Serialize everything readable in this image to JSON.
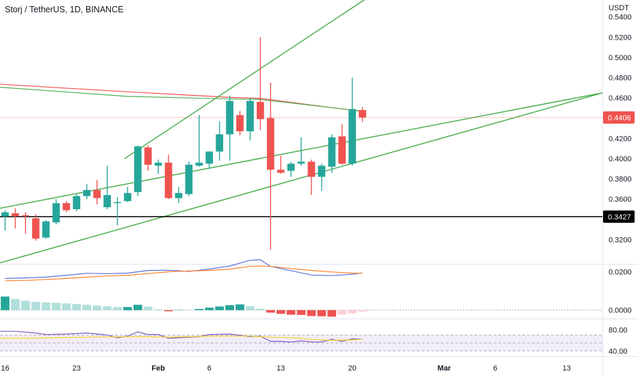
{
  "header": {
    "title": "Storj / TetherUS, 1D, BINANCE",
    "unit": "USDT"
  },
  "colors": {
    "up": "#26a69a",
    "down": "#ef5350",
    "trendline": "#4caf50",
    "ma_red": "#ef5350",
    "ma_green": "#4caf50",
    "support": "#000000",
    "macd": "#5b6fd6",
    "signal": "#ff7f2a",
    "rsi": "#7e57c2",
    "rsi_ma": "#f5d327",
    "hist_up_strong": "#26a69a",
    "hist_up_weak": "#b2dfdb",
    "hist_down_strong": "#ef5350",
    "hist_down_weak": "#ffcdd2"
  },
  "chart_data": [
    {
      "type": "candlestick",
      "title": "Storj / TetherUS, 1D, BINANCE",
      "ylabel": "USDT",
      "ylim": [
        0.296,
        0.5567
      ],
      "xlim": [
        15.5,
        74.5
      ],
      "x_is_day_index": "day 0 = Jan 1",
      "x_ticks": [
        {
          "x": 16,
          "label": "16"
        },
        {
          "x": 23,
          "label": "23"
        },
        {
          "x": 31,
          "label": "Feb"
        },
        {
          "x": 36,
          "label": "6"
        },
        {
          "x": 43,
          "label": "13"
        },
        {
          "x": 50,
          "label": "20"
        },
        {
          "x": 59,
          "label": "Mar"
        },
        {
          "x": 64,
          "label": "6"
        },
        {
          "x": 71,
          "label": "13"
        }
      ],
      "y_ticks": [
        0.54,
        0.52,
        0.5,
        0.48,
        0.46,
        0.42,
        0.4,
        0.38,
        0.36,
        0.32
      ],
      "y_tick_labels": [
        "0.5400",
        "0.5200",
        "0.5000",
        "0.4800",
        "0.4600",
        "0.4200",
        "0.4000",
        "0.3800",
        "0.3600",
        "0.3200"
      ],
      "candles": [
        {
          "x": 16,
          "o": 0.343,
          "h": 0.349,
          "l": 0.329,
          "c": 0.347
        },
        {
          "x": 17,
          "o": 0.346,
          "h": 0.351,
          "l": 0.331,
          "c": 0.343
        },
        {
          "x": 18,
          "o": 0.344,
          "h": 0.347,
          "l": 0.326,
          "c": 0.343
        },
        {
          "x": 19,
          "o": 0.341,
          "h": 0.345,
          "l": 0.319,
          "c": 0.321
        },
        {
          "x": 20,
          "o": 0.322,
          "h": 0.339,
          "l": 0.321,
          "c": 0.338
        },
        {
          "x": 21,
          "o": 0.337,
          "h": 0.36,
          "l": 0.335,
          "c": 0.356
        },
        {
          "x": 22,
          "o": 0.356,
          "h": 0.358,
          "l": 0.347,
          "c": 0.349
        },
        {
          "x": 23,
          "o": 0.35,
          "h": 0.365,
          "l": 0.348,
          "c": 0.363
        },
        {
          "x": 24,
          "o": 0.363,
          "h": 0.375,
          "l": 0.36,
          "c": 0.369
        },
        {
          "x": 25,
          "o": 0.369,
          "h": 0.379,
          "l": 0.355,
          "c": 0.361
        },
        {
          "x": 26,
          "o": 0.352,
          "h": 0.393,
          "l": 0.35,
          "c": 0.364
        },
        {
          "x": 27,
          "o": 0.356,
          "h": 0.362,
          "l": 0.334,
          "c": 0.357
        },
        {
          "x": 28,
          "o": 0.358,
          "h": 0.372,
          "l": 0.357,
          "c": 0.366
        },
        {
          "x": 29,
          "o": 0.367,
          "h": 0.413,
          "l": 0.363,
          "c": 0.412
        },
        {
          "x": 30,
          "o": 0.411,
          "h": 0.413,
          "l": 0.388,
          "c": 0.394
        },
        {
          "x": 31,
          "o": 0.393,
          "h": 0.399,
          "l": 0.385,
          "c": 0.396
        },
        {
          "x": 32,
          "o": 0.396,
          "h": 0.404,
          "l": 0.36,
          "c": 0.361
        },
        {
          "x": 33,
          "o": 0.361,
          "h": 0.372,
          "l": 0.356,
          "c": 0.366
        },
        {
          "x": 34,
          "o": 0.365,
          "h": 0.397,
          "l": 0.363,
          "c": 0.394
        },
        {
          "x": 35,
          "o": 0.393,
          "h": 0.443,
          "l": 0.392,
          "c": 0.396
        },
        {
          "x": 36,
          "o": 0.395,
          "h": 0.407,
          "l": 0.39,
          "c": 0.407
        },
        {
          "x": 37,
          "o": 0.407,
          "h": 0.437,
          "l": 0.398,
          "c": 0.424
        },
        {
          "x": 38,
          "o": 0.424,
          "h": 0.462,
          "l": 0.398,
          "c": 0.457
        },
        {
          "x": 39,
          "o": 0.443,
          "h": 0.447,
          "l": 0.423,
          "c": 0.427
        },
        {
          "x": 40,
          "o": 0.427,
          "h": 0.46,
          "l": 0.418,
          "c": 0.457
        },
        {
          "x": 41,
          "o": 0.456,
          "h": 0.52,
          "l": 0.428,
          "c": 0.439
        },
        {
          "x": 42,
          "o": 0.44,
          "h": 0.475,
          "l": 0.31,
          "c": 0.389
        },
        {
          "x": 43,
          "o": 0.389,
          "h": 0.403,
          "l": 0.385,
          "c": 0.386
        },
        {
          "x": 44,
          "o": 0.388,
          "h": 0.397,
          "l": 0.382,
          "c": 0.395
        },
        {
          "x": 45,
          "o": 0.395,
          "h": 0.421,
          "l": 0.393,
          "c": 0.397
        },
        {
          "x": 46,
          "o": 0.397,
          "h": 0.399,
          "l": 0.364,
          "c": 0.382
        },
        {
          "x": 47,
          "o": 0.382,
          "h": 0.395,
          "l": 0.368,
          "c": 0.393
        },
        {
          "x": 48,
          "o": 0.392,
          "h": 0.424,
          "l": 0.386,
          "c": 0.421
        },
        {
          "x": 49,
          "o": 0.422,
          "h": 0.434,
          "l": 0.394,
          "c": 0.395
        },
        {
          "x": 50,
          "o": 0.395,
          "h": 0.48,
          "l": 0.393,
          "c": 0.449
        },
        {
          "x": 51,
          "o": 0.448,
          "h": 0.451,
          "l": 0.436,
          "c": 0.4406
        }
      ],
      "last_price": "0.4406",
      "horizontal_line": {
        "value": 0.3427,
        "label": "0.3427"
      },
      "trendlines": [
        {
          "points": [
            [
              15.5,
              0.351
            ],
            [
              74.5,
              0.465
            ]
          ]
        },
        {
          "points": [
            [
              15.5,
              0.297
            ],
            [
              74.5,
              0.465
            ]
          ]
        },
        {
          "points": [
            [
              27.7,
              0.4
            ],
            [
              52.4,
              0.565
            ]
          ]
        }
      ],
      "moving_averages": [
        {
          "points": [
            [
              15.5,
              0.4735
            ],
            [
              28,
              0.466
            ],
            [
              38,
              0.4605
            ],
            [
              41,
              0.4595
            ],
            [
              51,
              0.4465
            ]
          ]
        },
        {
          "points": [
            [
              15.5,
              0.4705
            ],
            [
              28,
              0.4615
            ],
            [
              38,
              0.459
            ],
            [
              41,
              0.4585
            ],
            [
              51,
              0.4468
            ]
          ]
        }
      ]
    },
    {
      "type": "line",
      "indicator_panel": "MACD",
      "y_ticks": [
        0.02,
        0.0
      ],
      "y_tick_labels": [
        "0.0200",
        "0.0000"
      ],
      "ylim": [
        -0.0044,
        0.0234
      ],
      "histogram": {
        "x": [
          16,
          17,
          18,
          19,
          20,
          21,
          22,
          23,
          24,
          25,
          26,
          27,
          28,
          29,
          30,
          31,
          32,
          33,
          34,
          35,
          36,
          37,
          38,
          39,
          40,
          41,
          42,
          43,
          44,
          45,
          46,
          47,
          48,
          49,
          50,
          51
        ],
        "values": [
          0.0071,
          0.0058,
          0.0049,
          0.0043,
          0.004,
          0.0038,
          0.0035,
          0.0032,
          0.0028,
          0.0024,
          0.002,
          0.0016,
          0.0016,
          0.0028,
          0.0018,
          0.0004,
          -0.0006,
          0.0001,
          0.0,
          0.0006,
          0.0013,
          0.0019,
          0.0026,
          0.003,
          0.002,
          0.0007,
          -0.0013,
          -0.0019,
          -0.0024,
          -0.0025,
          -0.0031,
          -0.0032,
          -0.0034,
          -0.0022,
          -0.0017,
          -0.0007
        ]
      },
      "series": [
        {
          "x": [
            16,
            18,
            20,
            22,
            24,
            26,
            28,
            30,
            32,
            34,
            36,
            38,
            40,
            41,
            42,
            44,
            46,
            48,
            50,
            51
          ],
          "values": [
            0.0165,
            0.0168,
            0.0172,
            0.0182,
            0.0192,
            0.019,
            0.0193,
            0.0207,
            0.0208,
            0.0202,
            0.0214,
            0.023,
            0.026,
            0.0263,
            0.0228,
            0.0206,
            0.0183,
            0.018,
            0.0187,
            0.0194
          ]
        },
        {
          "x": [
            16,
            18,
            20,
            22,
            24,
            26,
            28,
            30,
            32,
            34,
            36,
            38,
            40,
            41,
            42,
            44,
            46,
            48,
            50,
            51
          ],
          "values": [
            0.0153,
            0.0155,
            0.016,
            0.0165,
            0.0172,
            0.0178,
            0.0182,
            0.019,
            0.02,
            0.0204,
            0.0207,
            0.0214,
            0.0228,
            0.023,
            0.0228,
            0.0217,
            0.0207,
            0.0199,
            0.0193,
            0.0192
          ]
        }
      ]
    },
    {
      "type": "line",
      "indicator_panel": "RSI",
      "y_ticks": [
        80,
        40
      ],
      "y_tick_labels": [
        "80.00",
        "40.00"
      ],
      "ylim": [
        30,
        100
      ],
      "band": [
        40,
        70
      ],
      "series": [
        {
          "x": [
            15.5,
            17,
            19,
            20,
            22,
            24,
            25,
            26,
            27,
            28,
            29,
            30,
            31,
            32,
            33,
            34,
            35,
            36,
            38,
            40,
            41,
            42,
            43,
            44,
            45,
            46,
            47,
            48,
            49,
            50,
            51
          ],
          "values": [
            77,
            77,
            74,
            71,
            72,
            74,
            72,
            70,
            65,
            68,
            76,
            71,
            71,
            64,
            65,
            66,
            67,
            71,
            72,
            67,
            68,
            58,
            58,
            57,
            59,
            57,
            57,
            62,
            58,
            63,
            62
          ]
        },
        {
          "x": [
            15.5,
            18,
            21,
            24,
            28,
            30,
            32,
            36,
            38,
            40,
            41,
            42,
            44,
            46,
            48,
            50,
            51
          ],
          "values": [
            64,
            64,
            65,
            66,
            67,
            67,
            66,
            68,
            68,
            68,
            67,
            66,
            65,
            62,
            60,
            61,
            62
          ]
        }
      ]
    }
  ]
}
